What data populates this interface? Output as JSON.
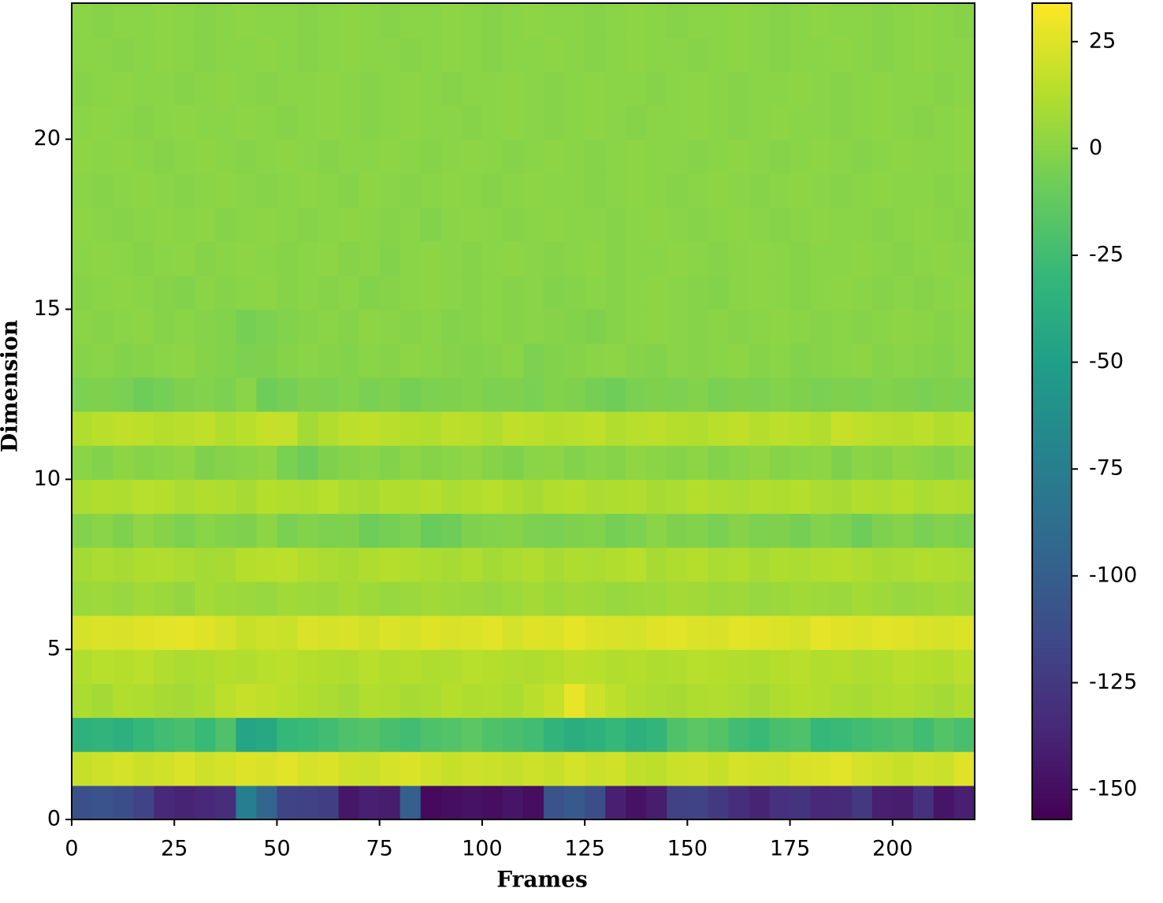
{
  "chart_data": {
    "type": "heatmap",
    "xlabel": "Frames",
    "ylabel": "Dimension",
    "colormap": "viridis",
    "x": [
      0,
      5,
      10,
      15,
      20,
      25,
      30,
      35,
      40,
      45,
      50,
      55,
      60,
      65,
      70,
      75,
      80,
      85,
      90,
      95,
      100,
      105,
      110,
      115,
      120,
      125,
      130,
      135,
      140,
      145,
      150,
      155,
      160,
      165,
      170,
      175,
      180,
      185,
      190,
      195,
      200,
      205,
      210,
      215,
      220
    ],
    "y": [
      0,
      1,
      2,
      3,
      4,
      5,
      6,
      7,
      8,
      9,
      10,
      11,
      12,
      13,
      14,
      15,
      16,
      17,
      18,
      19,
      20,
      21,
      22,
      23,
      24
    ],
    "xlim": [
      0,
      220
    ],
    "xticks": [
      0,
      25,
      50,
      75,
      100,
      125,
      150,
      175,
      200
    ],
    "ylim": [
      0,
      24
    ],
    "yticks": [
      0,
      5,
      10,
      15,
      20
    ],
    "clim": [
      -157,
      34
    ],
    "cticks": [
      -150,
      -125,
      -100,
      -75,
      -50,
      -25,
      0,
      25
    ],
    "values": [
      [
        -110,
        -108,
        -112,
        -118,
        -135,
        -138,
        -135,
        -132,
        -75,
        -95,
        -118,
        -120,
        -122,
        -145,
        -140,
        -142,
        -100,
        -152,
        -150,
        -148,
        -150,
        -146,
        -150,
        -108,
        -104,
        -112,
        -140,
        -148,
        -142,
        -120,
        -118,
        -125,
        -132,
        -138,
        -130,
        -128,
        -136,
        -134,
        -125,
        -140,
        -142,
        -130,
        -146,
        -140
      ],
      [
        18,
        20,
        22,
        19,
        21,
        24,
        20,
        22,
        25,
        23,
        26,
        22,
        24,
        20,
        19,
        22,
        24,
        21,
        18,
        20,
        19,
        17,
        20,
        18,
        22,
        19,
        21,
        16,
        15,
        19,
        20,
        18,
        22,
        21,
        20,
        23,
        24,
        26,
        22,
        20,
        18,
        21,
        19,
        25
      ],
      [
        -35,
        -33,
        -36,
        -30,
        -25,
        -22,
        -28,
        -20,
        -45,
        -42,
        -30,
        -28,
        -25,
        -20,
        -18,
        -22,
        -25,
        -20,
        -18,
        -15,
        -20,
        -22,
        -25,
        -33,
        -38,
        -35,
        -30,
        -36,
        -32,
        -20,
        -15,
        -18,
        -25,
        -28,
        -22,
        -20,
        -30,
        -28,
        -25,
        -22,
        -20,
        -25,
        -18,
        -22
      ],
      [
        10,
        8,
        12,
        11,
        9,
        8,
        10,
        15,
        18,
        16,
        14,
        12,
        10,
        8,
        12,
        11,
        9,
        10,
        13,
        11,
        12,
        10,
        14,
        18,
        28,
        20,
        15,
        12,
        10,
        9,
        11,
        12,
        10,
        8,
        11,
        13,
        12,
        10,
        9,
        11,
        12,
        10,
        8,
        11
      ],
      [
        12,
        14,
        13,
        15,
        12,
        10,
        11,
        13,
        12,
        14,
        15,
        13,
        12,
        11,
        14,
        12,
        13,
        11,
        12,
        14,
        13,
        12,
        11,
        13,
        15,
        14,
        12,
        13,
        11,
        12,
        14,
        13,
        12,
        11,
        13,
        14,
        12,
        13,
        11,
        12,
        14,
        13,
        12,
        15
      ],
      [
        22,
        24,
        23,
        25,
        26,
        27,
        25,
        22,
        18,
        20,
        19,
        24,
        22,
        23,
        21,
        24,
        22,
        25,
        23,
        24,
        26,
        22,
        25,
        24,
        27,
        24,
        23,
        22,
        25,
        26,
        24,
        23,
        26,
        25,
        24,
        22,
        27,
        25,
        24,
        26,
        25,
        23,
        22,
        24
      ],
      [
        5,
        6,
        4,
        7,
        5,
        3,
        8,
        6,
        5,
        4,
        7,
        6,
        5,
        8,
        6,
        4,
        5,
        7,
        6,
        5,
        4,
        6,
        8,
        5,
        7,
        6,
        4,
        5,
        6,
        8,
        7,
        5,
        6,
        4,
        5,
        7,
        6,
        5,
        8,
        6,
        4,
        5,
        7,
        6
      ],
      [
        8,
        10,
        9,
        11,
        12,
        10,
        8,
        9,
        13,
        14,
        15,
        12,
        10,
        9,
        11,
        13,
        12,
        10,
        9,
        11,
        8,
        10,
        12,
        9,
        11,
        10,
        12,
        14,
        9,
        11,
        13,
        10,
        12,
        9,
        11,
        10,
        12,
        13,
        11,
        9,
        10,
        12,
        11,
        10
      ],
      [
        -2,
        0,
        -3,
        2,
        -1,
        -4,
        0,
        -2,
        -3,
        1,
        -5,
        -2,
        -4,
        -3,
        -8,
        -6,
        -4,
        -10,
        -8,
        -3,
        -2,
        -1,
        -4,
        -5,
        -3,
        -2,
        -6,
        -4,
        0,
        -3,
        -2,
        -5,
        -1,
        -4,
        -3,
        -6,
        -2,
        -4,
        -8,
        -3,
        -1,
        -5,
        -2,
        -4
      ],
      [
        10,
        12,
        11,
        14,
        13,
        10,
        12,
        11,
        9,
        13,
        12,
        11,
        14,
        10,
        9,
        12,
        11,
        13,
        10,
        12,
        14,
        11,
        9,
        12,
        13,
        10,
        11,
        12,
        9,
        10,
        13,
        11,
        10,
        12,
        11,
        13,
        10,
        9,
        12,
        11,
        13,
        10,
        12,
        11
      ],
      [
        0,
        -2,
        1,
        -1,
        0,
        2,
        -3,
        -1,
        0,
        2,
        -5,
        -8,
        -3,
        -1,
        0,
        -2,
        1,
        -1,
        0,
        2,
        -1,
        -3,
        0,
        1,
        -2,
        0,
        -1,
        2,
        0,
        -1,
        1,
        -2,
        0,
        2,
        -1,
        0,
        1,
        -3,
        0,
        -1,
        2,
        0,
        -2,
        1
      ],
      [
        12,
        14,
        16,
        15,
        13,
        14,
        16,
        12,
        14,
        18,
        17,
        8,
        12,
        15,
        16,
        14,
        13,
        12,
        15,
        14,
        12,
        16,
        15,
        13,
        14,
        16,
        12,
        14,
        15,
        13,
        12,
        14,
        16,
        13,
        15,
        14,
        12,
        18,
        16,
        14,
        13,
        15,
        12,
        14
      ],
      [
        -4,
        -3,
        -5,
        -8,
        -6,
        -3,
        -2,
        -4,
        0,
        -8,
        -6,
        -3,
        -4,
        -2,
        -5,
        -3,
        -6,
        -4,
        -3,
        -2,
        -4,
        -3,
        -5,
        -2,
        -3,
        -6,
        -8,
        -5,
        -3,
        -4,
        -2,
        -5,
        -3,
        -4,
        -2,
        -3,
        -5,
        -3,
        -4,
        -2,
        -3,
        -5,
        -3,
        -4
      ],
      [
        -1,
        0,
        -2,
        -1,
        0,
        1,
        -1,
        -2,
        -4,
        -3,
        -1,
        0,
        -1,
        -2,
        0,
        -1,
        1,
        0,
        -1,
        -2,
        -1,
        0,
        -4,
        -2,
        -1,
        0,
        1,
        -1,
        -2,
        0,
        -1,
        0,
        1,
        -1,
        0,
        -2,
        -1,
        0,
        1,
        -1,
        0,
        -1,
        -2,
        0
      ],
      [
        0,
        -1,
        0,
        1,
        -1,
        0,
        -1,
        -2,
        -6,
        -4,
        -2,
        -1,
        0,
        -1,
        1,
        0,
        -1,
        0,
        -2,
        -1,
        0,
        -1,
        0,
        -1,
        -2,
        -3,
        -1,
        0,
        1,
        0,
        -1,
        0,
        -1,
        0,
        1,
        0,
        -1,
        0,
        -1,
        0,
        1,
        0,
        -1,
        0
      ],
      [
        -1,
        0,
        1,
        0,
        -1,
        -2,
        0,
        -1,
        0,
        1,
        -1,
        0,
        -1,
        0,
        -2,
        -1,
        0,
        1,
        0,
        -1,
        0,
        -1,
        0,
        -2,
        -1,
        0,
        -1,
        0,
        1,
        0,
        -1,
        -2,
        0,
        1,
        0,
        -1,
        0,
        1,
        0,
        -1,
        0,
        -1,
        0,
        1
      ],
      [
        0,
        1,
        0,
        -1,
        0,
        1,
        -1,
        0,
        1,
        0,
        -1,
        0,
        1,
        -1,
        0,
        -2,
        0,
        1,
        0,
        -1,
        0,
        1,
        0,
        -1,
        0,
        1,
        -1,
        0,
        0,
        1,
        0,
        -1,
        0,
        1,
        0,
        -1,
        0,
        0,
        1,
        0,
        -1,
        0,
        1,
        0
      ],
      [
        1,
        0,
        -1,
        0,
        1,
        0,
        1,
        -1,
        0,
        1,
        0,
        -1,
        0,
        1,
        0,
        -1,
        0,
        -2,
        0,
        1,
        0,
        -1,
        0,
        1,
        0,
        0,
        -1,
        0,
        1,
        0,
        -1,
        0,
        1,
        0,
        -1,
        0,
        1,
        0,
        0,
        -1,
        0,
        1,
        0,
        -1
      ],
      [
        0,
        -1,
        0,
        1,
        0,
        -1,
        0,
        1,
        0,
        -1,
        0,
        1,
        0,
        -1,
        1,
        0,
        -1,
        0,
        1,
        0,
        -1,
        0,
        1,
        0,
        0,
        -1,
        0,
        1,
        0,
        -1,
        0,
        1,
        0,
        -1,
        0,
        1,
        0,
        -1,
        0,
        1,
        0,
        0,
        -1,
        0
      ],
      [
        1,
        0,
        1,
        0,
        -1,
        0,
        1,
        0,
        -1,
        0,
        1,
        0,
        -1,
        0,
        0,
        1,
        0,
        -1,
        0,
        1,
        0,
        -1,
        0,
        1,
        0,
        -1,
        0,
        1,
        0,
        0,
        -1,
        0,
        1,
        0,
        -1,
        0,
        1,
        0,
        -1,
        0,
        1,
        0,
        0,
        1
      ],
      [
        0,
        1,
        0,
        -1,
        0,
        1,
        0,
        0,
        1,
        0,
        -1,
        0,
        1,
        0,
        -1,
        0,
        1,
        0,
        0,
        -1,
        0,
        1,
        0,
        -1,
        0,
        1,
        0,
        -1,
        0,
        0,
        1,
        0,
        -1,
        0,
        1,
        0,
        0,
        -1,
        0,
        1,
        0,
        -1,
        0,
        1
      ],
      [
        -1,
        0,
        1,
        0,
        0,
        -1,
        0,
        1,
        0,
        -1,
        0,
        0,
        1,
        0,
        -1,
        0,
        1,
        0,
        -1,
        0,
        0,
        1,
        0,
        -1,
        0,
        1,
        0,
        0,
        -1,
        0,
        1,
        0,
        -1,
        0,
        0,
        1,
        0,
        -1,
        0,
        1,
        0,
        0,
        -1,
        0
      ],
      [
        0,
        0,
        -1,
        0,
        1,
        0,
        -1,
        0,
        0,
        1,
        0,
        -1,
        0,
        1,
        0,
        0,
        -1,
        0,
        1,
        0,
        -1,
        0,
        0,
        1,
        0,
        -1,
        0,
        1,
        0,
        0,
        -1,
        0,
        1,
        0,
        -1,
        0,
        0,
        1,
        0,
        -1,
        0,
        1,
        0,
        0
      ],
      [
        0,
        -1,
        0,
        0,
        1,
        0,
        -1,
        0,
        1,
        0,
        0,
        -1,
        0,
        1,
        0,
        -1,
        0,
        0,
        1,
        0,
        -1,
        0,
        1,
        0,
        0,
        -1,
        0,
        1,
        0,
        -1,
        0,
        0,
        1,
        0,
        -1,
        0,
        1,
        0,
        0,
        -1,
        0,
        1,
        0,
        -1
      ]
    ]
  }
}
